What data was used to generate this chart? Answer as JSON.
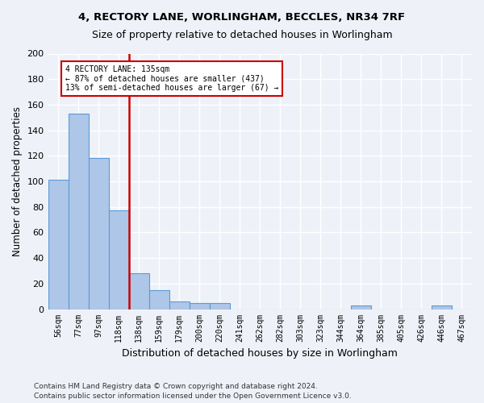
{
  "title1": "4, RECTORY LANE, WORLINGHAM, BECCLES, NR34 7RF",
  "title2": "Size of property relative to detached houses in Worlingham",
  "xlabel": "Distribution of detached houses by size in Worlingham",
  "ylabel": "Number of detached properties",
  "bar_labels": [
    "56sqm",
    "77sqm",
    "97sqm",
    "118sqm",
    "138sqm",
    "159sqm",
    "179sqm",
    "200sqm",
    "220sqm",
    "241sqm",
    "262sqm",
    "282sqm",
    "303sqm",
    "323sqm",
    "344sqm",
    "364sqm",
    "385sqm",
    "405sqm",
    "426sqm",
    "446sqm",
    "467sqm"
  ],
  "bar_values": [
    101,
    153,
    118,
    77,
    28,
    15,
    6,
    5,
    5,
    0,
    0,
    0,
    0,
    0,
    0,
    3,
    0,
    0,
    0,
    3,
    0
  ],
  "bar_color": "#aec6e8",
  "bar_edge_color": "#5b9bd5",
  "annotation_text": "4 RECTORY LANE: 135sqm\n← 87% of detached houses are smaller (437)\n13% of semi-detached houses are larger (67) →",
  "annotation_box_color": "#ffffff",
  "annotation_box_edge": "#cc0000",
  "vline_color": "#cc0000",
  "vline_x": 3.5,
  "footnote1": "Contains HM Land Registry data © Crown copyright and database right 2024.",
  "footnote2": "Contains public sector information licensed under the Open Government Licence v3.0.",
  "bg_color": "#eef2f8",
  "plot_bg_color": "#eef2f8",
  "grid_color": "#ffffff",
  "ylim": [
    0,
    200
  ],
  "yticks": [
    0,
    20,
    40,
    60,
    80,
    100,
    120,
    140,
    160,
    180,
    200
  ]
}
